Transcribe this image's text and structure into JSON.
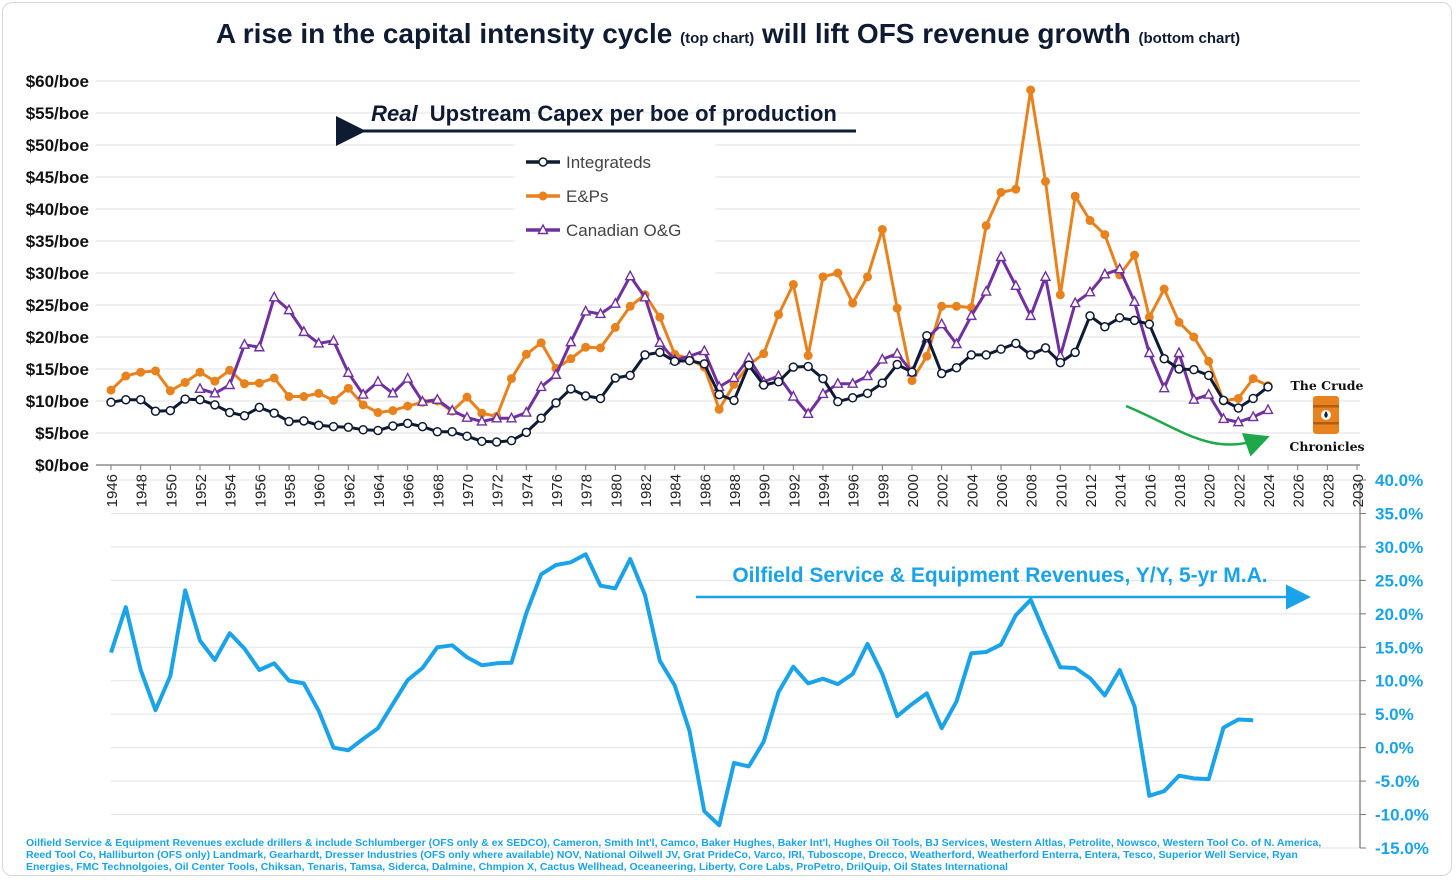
{
  "title": {
    "part1": "A rise in the capital intensity cycle",
    "part1_note": "(top chart)",
    "part2": "will lift OFS revenue growth",
    "part2_note": "(bottom chart)"
  },
  "logo": {
    "line1": "The Crude",
    "line2": "Chronicles"
  },
  "footnote": "Oilfield Service & Equipment Revenues exclude drillers & include Schlumberger (OFS only & ex SEDCO), Cameron, Smith Int'l, Camco, Baker Hughes, Baker Int'l, Hughes Oil Tools, BJ Services, Western Altlas, Petrolite, Nowsco, Western Tool Co. of N. America, Reed Tool Co, Halliburton (OFS only) Landmark, Gearhardt, Dresser Industries (OFS only where available) NOV, National Oilwell JV, Grat PrideCo, Varco, IRI, Tuboscope, Drecco, Weatherford, Weatherford Enterra, Entera, Tesco, Superior Well Service, Ryan Energies, FMC Technolgoies, Oil Center Tools, Chiksan, Tenaris, Tamsa, Siderca, Dalmine, Chmpion X, Cactus Wellhead, Oceaneering, Liberty, Core Labs, ProPetro, DrilQuip, Oil States International",
  "colors": {
    "integrateds": "#0f1b33",
    "eps": "#e8821e",
    "canadian": "#7030a0",
    "ofs": "#1aa3e8",
    "arrow_green": "#1ea84a"
  },
  "chart_data": [
    {
      "type": "line",
      "annotation": {
        "prefix": "Real",
        "text": "Upstream Capex per boe of production",
        "arrow": "left"
      },
      "legend_position": "upper-center",
      "x_ticks": [
        1946,
        1948,
        1950,
        1952,
        1954,
        1956,
        1958,
        1960,
        1962,
        1964,
        1966,
        1968,
        1970,
        1972,
        1974,
        1976,
        1978,
        1980,
        1982,
        1984,
        1986,
        1988,
        1990,
        1992,
        1994,
        1996,
        1998,
        2000,
        2002,
        2004,
        2006,
        2008,
        2010,
        2012,
        2014,
        2016,
        2018,
        2020,
        2022,
        2024,
        2026,
        2028,
        2030
      ],
      "y_ticks": [
        "$0/boe",
        "$5/boe",
        "$10/boe",
        "$15/boe",
        "$20/boe",
        "$25/boe",
        "$30/boe",
        "$35/boe",
        "$40/boe",
        "$45/boe",
        "$50/boe",
        "$55/boe",
        "$60/boe"
      ],
      "xlim": [
        1946,
        2030
      ],
      "ylim": [
        0,
        60
      ],
      "series": [
        {
          "name": "Integrateds",
          "x_start": 1946,
          "values": [
            9.8,
            10.2,
            10.2,
            8.4,
            8.5,
            10.3,
            10.2,
            9.4,
            8.2,
            7.7,
            9.0,
            8.1,
            6.8,
            6.9,
            6.2,
            6.0,
            5.9,
            5.5,
            5.4,
            6.1,
            6.5,
            6.0,
            5.2,
            5.2,
            4.5,
            3.7,
            3.6,
            3.8,
            5.1,
            7.3,
            9.7,
            11.9,
            10.8,
            10.4,
            13.6,
            14.0,
            17.2,
            17.6,
            16.2,
            16.3,
            15.8,
            11.0,
            10.1,
            15.6,
            12.5,
            13.0,
            15.3,
            15.4,
            13.5,
            9.9,
            10.5,
            11.2,
            12.8,
            15.7,
            14.5,
            20.2,
            14.3,
            15.2,
            17.2,
            17.2,
            18.1,
            19.0,
            17.2,
            18.3,
            16.0,
            17.6,
            23.3,
            21.6,
            23.0,
            22.6,
            22.0,
            16.6,
            15.0,
            14.9,
            14.0,
            10.1,
            8.9,
            10.4,
            12.2
          ]
        },
        {
          "name": "E&Ps",
          "x_start": 1946,
          "values": [
            11.7,
            13.9,
            14.5,
            14.7,
            11.6,
            12.9,
            14.5,
            13.1,
            14.8,
            12.7,
            12.8,
            13.6,
            10.7,
            10.7,
            11.2,
            10.1,
            12.0,
            9.4,
            8.2,
            8.5,
            9.2,
            9.8,
            10.0,
            8.4,
            10.6,
            8.1,
            7.6,
            13.5,
            17.3,
            19.1,
            15.1,
            16.6,
            18.4,
            18.3,
            21.5,
            24.8,
            26.6,
            23.1,
            17.3,
            16.6,
            15.3,
            8.7,
            12.6,
            15.6,
            17.4,
            23.5,
            28.2,
            17.1,
            29.4,
            30.0,
            25.3,
            29.4,
            36.8,
            24.5,
            13.2,
            17.0,
            24.8,
            24.8,
            24.6,
            37.4,
            42.6,
            43.1,
            58.6,
            44.3,
            26.6,
            42.0,
            38.2,
            36.0,
            29.7,
            32.8,
            23.1,
            27.5,
            22.3,
            20.0,
            16.2,
            10.0,
            10.4,
            13.5,
            12.4
          ]
        },
        {
          "name": "Canadian O&G",
          "x_start": 1946,
          "values": [
            null,
            null,
            null,
            null,
            null,
            null,
            11.9,
            11.2,
            12.5,
            18.8,
            18.4,
            26.2,
            24.2,
            20.8,
            19.0,
            19.4,
            14.4,
            11.0,
            13.0,
            11.2,
            13.5,
            9.9,
            10.2,
            8.5,
            7.4,
            6.8,
            7.3,
            7.3,
            8.2,
            12.2,
            14.1,
            19.2,
            24.0,
            23.6,
            25.2,
            29.5,
            26.2,
            19.1,
            16.4,
            17.0,
            17.8,
            12.2,
            13.6,
            16.7,
            13.0,
            13.9,
            10.7,
            8.0,
            11.1,
            12.7,
            12.7,
            13.9,
            16.5,
            17.4,
            14.5,
            19.8,
            22.0,
            18.9,
            23.3,
            27.1,
            32.5,
            28.0,
            23.3,
            29.4,
            17.0,
            25.3,
            27.0,
            29.8,
            30.6,
            25.5,
            17.5,
            12.0,
            17.5,
            10.2,
            11.0,
            7.2,
            6.7,
            7.5,
            8.6
          ]
        }
      ]
    },
    {
      "type": "line",
      "annotation": {
        "text": "Oilfield Service & Equipment Revenues, Y/Y, 5-yr M.A.",
        "arrow": "right"
      },
      "y_ticks": [
        "40.0%",
        "35.0%",
        "30.0%",
        "25.0%",
        "20.0%",
        "15.0%",
        "10.0%",
        "5.0%",
        "0.0%",
        "-5.0%",
        "-10.0%",
        "-15.0%"
      ],
      "ylim": [
        -15,
        40
      ],
      "xlim": [
        1946,
        2030
      ],
      "series": [
        {
          "name": "Oilfield Service & Equipment Revenues, Y/Y, 5-yr M.A.",
          "x_start": 1946,
          "values": [
            14.2,
            21.0,
            11.6,
            5.6,
            10.7,
            23.5,
            16.0,
            13.1,
            17.1,
            14.8,
            11.6,
            12.6,
            10.0,
            9.6,
            5.5,
            0.0,
            -0.4,
            1.3,
            2.9,
            6.5,
            10.1,
            11.9,
            15.0,
            15.3,
            13.5,
            12.3,
            12.6,
            12.7,
            20.1,
            25.9,
            27.3,
            27.7,
            28.9,
            24.2,
            23.8,
            28.2,
            22.8,
            13.0,
            9.3,
            2.5,
            -9.5,
            -11.6,
            -2.3,
            -2.8,
            0.9,
            8.3,
            12.1,
            9.6,
            10.3,
            9.5,
            11.0,
            15.5,
            11.0,
            4.7,
            6.5,
            8.1,
            2.9,
            6.9,
            14.1,
            14.3,
            15.4,
            19.8,
            22.1,
            16.9,
            12.0,
            11.9,
            10.4,
            7.8,
            11.6,
            6.2,
            -7.2,
            -6.5,
            -4.2,
            -4.6,
            -4.7,
            3.0,
            4.2,
            4.1
          ]
        }
      ]
    }
  ]
}
